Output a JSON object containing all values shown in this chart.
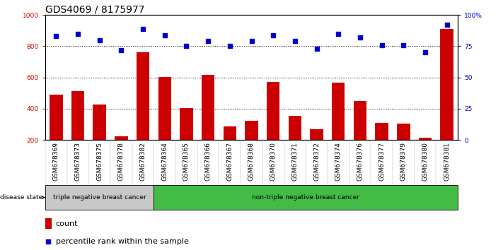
{
  "title": "GDS4069 / 8175977",
  "samples": [
    "GSM678369",
    "GSM678373",
    "GSM678375",
    "GSM678378",
    "GSM678382",
    "GSM678364",
    "GSM678365",
    "GSM678366",
    "GSM678367",
    "GSM678368",
    "GSM678370",
    "GSM678371",
    "GSM678372",
    "GSM678374",
    "GSM678376",
    "GSM678377",
    "GSM678379",
    "GSM678380",
    "GSM678381"
  ],
  "counts": [
    490,
    515,
    425,
    225,
    760,
    605,
    405,
    615,
    285,
    325,
    570,
    355,
    270,
    565,
    450,
    310,
    305,
    215,
    910
  ],
  "percentiles": [
    83,
    85,
    80,
    72,
    89,
    84,
    75,
    79,
    75,
    79,
    84,
    79,
    73,
    85,
    82,
    76,
    76,
    70,
    92
  ],
  "group1_count": 5,
  "group1_label": "triple negative breast cancer",
  "group2_label": "non-triple negative breast cancer",
  "legend_count": "count",
  "legend_pct": "percentile rank within the sample",
  "bar_color": "#cc0000",
  "dot_color": "#0000cc",
  "group1_bg": "#c8c8c8",
  "group2_bg": "#44bb44",
  "xtick_bg": "#d0d0d0",
  "ymin": 200,
  "ymax": 1000,
  "yticks": [
    200,
    400,
    600,
    800,
    1000
  ],
  "right_yticks": [
    0,
    25,
    50,
    75,
    100
  ],
  "right_ytick_labels": [
    "0",
    "25",
    "50",
    "75",
    "100%"
  ],
  "hlines": [
    400,
    600,
    800
  ],
  "title_fontsize": 10,
  "tick_fontsize": 6.5,
  "label_fontsize": 8
}
